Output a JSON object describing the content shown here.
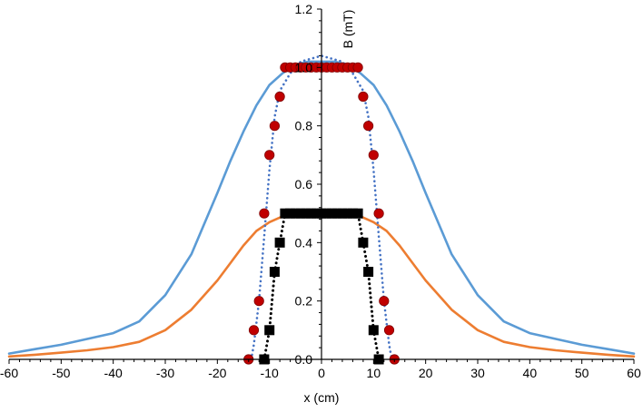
{
  "chart_data": {
    "type": "scatter",
    "title": "",
    "xlabel": "x (cm)",
    "ylabel": "B (mT)",
    "xlim": [
      -60,
      60
    ],
    "ylim": [
      0,
      1.2
    ],
    "x_ticks": [
      "-60",
      "-50",
      "-40",
      "-30",
      "-20",
      "-10",
      "0",
      "10",
      "20",
      "30",
      "40",
      "50",
      "60"
    ],
    "y_ticks": [
      "0.0",
      "0.2",
      "0.4",
      "0.6",
      "0.8",
      "1.0",
      "1.2"
    ],
    "grid": false,
    "legend": "none",
    "series": [
      {
        "kind": "line",
        "style": "solid",
        "color": "#5b9bd5",
        "x": [
          -60,
          -55,
          -50,
          -45,
          -40,
          -35,
          -30,
          -25,
          -20,
          -17.5,
          -15,
          -12.5,
          -10,
          -7.5,
          -5,
          -2.5,
          0,
          2.5,
          5,
          7.5,
          10,
          12.5,
          15,
          17.5,
          20,
          25,
          30,
          35,
          40,
          45,
          50,
          55,
          60
        ],
        "y": [
          0.02,
          0.035,
          0.05,
          0.07,
          0.09,
          0.13,
          0.22,
          0.36,
          0.57,
          0.68,
          0.78,
          0.87,
          0.94,
          0.98,
          1.01,
          1.02,
          1.02,
          1.02,
          1.01,
          0.98,
          0.94,
          0.87,
          0.78,
          0.68,
          0.57,
          0.36,
          0.22,
          0.13,
          0.09,
          0.07,
          0.05,
          0.035,
          0.02
        ]
      },
      {
        "kind": "line",
        "style": "solid",
        "color": "#ed7d31",
        "x": [
          -60,
          -55,
          -50,
          -45,
          -40,
          -35,
          -30,
          -25,
          -20,
          -17.5,
          -15,
          -12.5,
          -10,
          -7.5,
          -5,
          -2.5,
          0,
          2.5,
          5,
          7.5,
          10,
          12.5,
          15,
          17.5,
          20,
          25,
          30,
          35,
          40,
          45,
          50,
          55,
          60
        ],
        "y": [
          0.01,
          0.016,
          0.023,
          0.031,
          0.042,
          0.06,
          0.1,
          0.17,
          0.27,
          0.33,
          0.39,
          0.44,
          0.47,
          0.49,
          0.5,
          0.5,
          0.5,
          0.5,
          0.5,
          0.49,
          0.47,
          0.44,
          0.39,
          0.33,
          0.27,
          0.17,
          0.1,
          0.06,
          0.042,
          0.031,
          0.023,
          0.016,
          0.01
        ]
      },
      {
        "kind": "line",
        "style": "dotted",
        "color": "#4472c4",
        "x": [
          -13.5,
          -13,
          -12,
          -11,
          -10,
          -9,
          -8,
          -6,
          -4,
          -2,
          0,
          2,
          4,
          6,
          8,
          9,
          10,
          11,
          12,
          13,
          13.5
        ],
        "y": [
          0.0,
          0.05,
          0.2,
          0.42,
          0.65,
          0.83,
          0.92,
          0.98,
          1.02,
          1.03,
          1.04,
          1.03,
          1.02,
          0.98,
          0.92,
          0.83,
          0.65,
          0.42,
          0.2,
          0.05,
          0.0
        ]
      },
      {
        "kind": "markers",
        "marker": "circle",
        "color": "#c00000",
        "stroke": "#7f0000",
        "x": [
          -14,
          -13,
          -12,
          -11,
          -10,
          -9,
          -8,
          -7,
          -6,
          -5,
          -4,
          -3,
          -2,
          -1,
          0,
          1,
          2,
          3,
          4,
          5,
          6,
          7,
          8,
          9,
          10,
          11,
          12,
          13,
          14
        ],
        "y": [
          0.0,
          0.1,
          0.2,
          0.5,
          0.7,
          0.8,
          0.9,
          1.0,
          1.0,
          1.0,
          1.0,
          1.0,
          1.0,
          1.0,
          1.0,
          1.0,
          1.0,
          1.0,
          1.0,
          1.0,
          1.0,
          1.0,
          0.9,
          0.8,
          0.7,
          0.5,
          0.2,
          0.1,
          0.0
        ]
      },
      {
        "kind": "markers",
        "marker": "square",
        "color": "#000000",
        "line_style": "dotted",
        "x": [
          -11,
          -10,
          -9,
          -8,
          -7,
          -6,
          -5,
          -4,
          -3,
          -2,
          -1,
          0,
          1,
          2,
          3,
          4,
          5,
          6,
          7,
          8,
          9,
          10,
          11
        ],
        "y": [
          0.0,
          0.1,
          0.3,
          0.4,
          0.5,
          0.5,
          0.5,
          0.5,
          0.5,
          0.5,
          0.5,
          0.5,
          0.5,
          0.5,
          0.5,
          0.5,
          0.5,
          0.5,
          0.5,
          0.4,
          0.3,
          0.1,
          0.0
        ]
      }
    ]
  }
}
